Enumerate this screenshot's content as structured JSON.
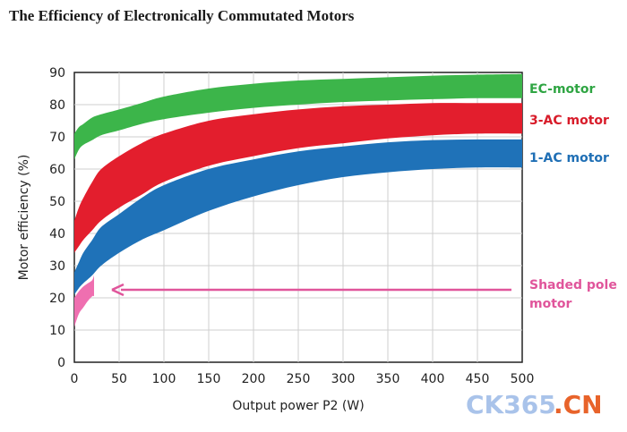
{
  "chart_data": {
    "type": "area",
    "title": "The Efficiency of Electronically Commutated Motors",
    "xlabel": "Output power P2 (W)",
    "ylabel": "Motor efficiency (%)",
    "xlim": [
      0,
      500
    ],
    "ylim": [
      0,
      90
    ],
    "x_ticks": [
      "0",
      "50",
      "100",
      "150",
      "200",
      "250",
      "300",
      "350",
      "400",
      "450",
      "500"
    ],
    "y_ticks": [
      "0",
      "10",
      "20",
      "30",
      "40",
      "50",
      "60",
      "70",
      "80",
      "90"
    ],
    "grid": true,
    "series": [
      {
        "name": "EC-motor",
        "color": "#3cb54a",
        "x": [
          0,
          5,
          10,
          20,
          30,
          50,
          75,
          100,
          150,
          200,
          250,
          300,
          350,
          400,
          450,
          500
        ],
        "upper": [
          71,
          73,
          74,
          76,
          77,
          78.5,
          80.5,
          82.5,
          85,
          86.5,
          87.5,
          88,
          88.5,
          89,
          89.3,
          89.5
        ],
        "lower": [
          63,
          66,
          67.5,
          69,
          70.5,
          72,
          74,
          75.5,
          77.5,
          79,
          80,
          80.8,
          81.3,
          81.7,
          82,
          82
        ]
      },
      {
        "name": "3-AC motor",
        "color": "#e31e2d",
        "x": [
          0,
          5,
          10,
          20,
          30,
          50,
          75,
          100,
          150,
          200,
          250,
          300,
          350,
          400,
          450,
          500
        ],
        "upper": [
          44,
          48,
          51,
          56,
          60,
          64,
          68,
          71,
          75,
          77,
          78.5,
          79.5,
          80,
          80.5,
          80.5,
          80.5
        ],
        "lower": [
          34,
          36,
          38,
          41,
          44,
          48,
          52,
          56,
          61,
          64,
          66.5,
          68,
          69.5,
          70.5,
          71,
          71
        ]
      },
      {
        "name": "1-AC motor",
        "color": "#1f72b8",
        "x": [
          0,
          5,
          10,
          20,
          30,
          50,
          75,
          100,
          150,
          200,
          250,
          300,
          350,
          400,
          450,
          500
        ],
        "upper": [
          28,
          31,
          34,
          38,
          42,
          46,
          51,
          55,
          60,
          63,
          65.5,
          67,
          68.3,
          69,
          69.2,
          69.2
        ],
        "lower": [
          21,
          23,
          24.5,
          27,
          30,
          34,
          38,
          41,
          47,
          51.5,
          55,
          57.5,
          59,
          60,
          60.5,
          60.5
        ]
      },
      {
        "name": "Shaded pole motor",
        "color": "#ef6fb0",
        "x": [
          0,
          5,
          10,
          15,
          20,
          22
        ],
        "upper": [
          20,
          22,
          23.5,
          24.5,
          25.5,
          27
        ],
        "lower": [
          11,
          15,
          17,
          19,
          20.5,
          20.5
        ]
      }
    ],
    "annotations": [
      {
        "text": "Shaded pole motor",
        "type": "arrow",
        "color": "#e0559b",
        "from_x": 500,
        "to_x": 30,
        "y": 22.5
      }
    ]
  },
  "labels": {
    "ec": "EC-motor",
    "ac3": "3-AC motor",
    "ac1": "1-AC motor",
    "shaded_line1": "Shaded pole",
    "shaded_line2": "motor"
  },
  "watermark": {
    "part1": "CK365",
    "part2": ".CN",
    "color1": "#a9c3ea",
    "color2": "#e8632a"
  }
}
